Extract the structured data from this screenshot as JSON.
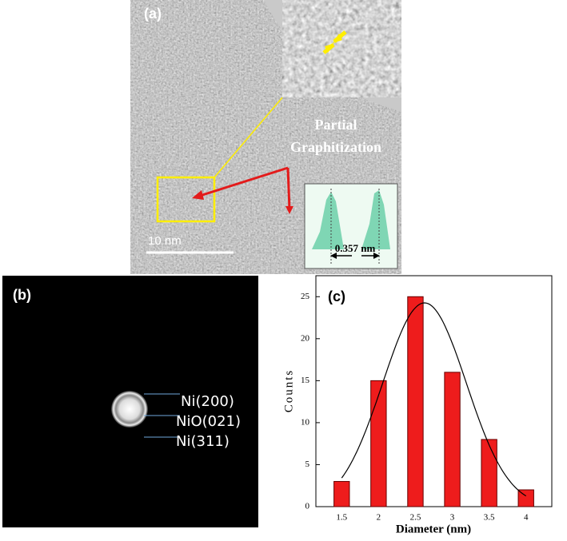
{
  "panel_a": {
    "label": "(a)",
    "annotation_line1": "Partial",
    "annotation_line2": "Graphitization",
    "scale_bar": "10 nm",
    "spacing": "0.357 nm"
  },
  "panel_b": {
    "label": "(b)",
    "rings": [
      "Ni(200)",
      "NiO(021)",
      "Ni(311)"
    ]
  },
  "chart_data": {
    "type": "bar",
    "panel_label": "(c)",
    "x_label": "Diameter (nm)",
    "y_label": "Counts",
    "x": [
      1.5,
      2,
      2.5,
      3,
      3.5,
      4
    ],
    "values": [
      3,
      15,
      25,
      16,
      8,
      2
    ],
    "color": "#ee1c1c",
    "xlim": [
      1.15,
      4.35
    ],
    "xticks": [
      1.5,
      2,
      2.5,
      3,
      3.5,
      4
    ],
    "ylim": [
      0,
      27.5
    ],
    "yticks": [
      0,
      5,
      10,
      15,
      20,
      25
    ],
    "grid": false
  }
}
